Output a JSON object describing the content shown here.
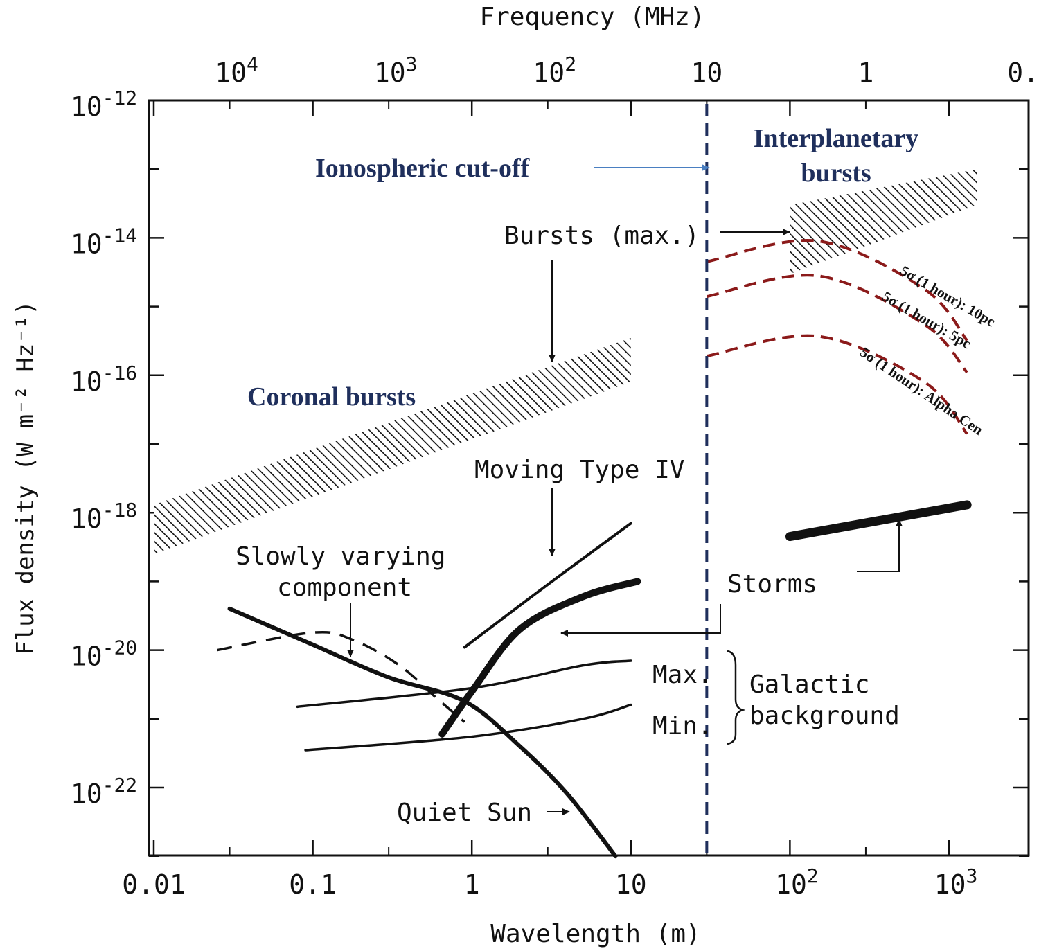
{
  "chart_data": {
    "type": "line",
    "title": "",
    "xlabel": "Wavelength (m)",
    "x2label": "Frequency (MHz)",
    "ylabel": "Flux density (W m⁻² Hz⁻¹)",
    "x_scale": "log",
    "y_scale": "log",
    "xlim": [
      0.01,
      3000
    ],
    "ylim": [
      1e-23,
      1e-12
    ],
    "grid": false,
    "x_ticks": [
      {
        "base": "0.01",
        "exp": ""
      },
      {
        "base": "0.1",
        "exp": ""
      },
      {
        "base": "1",
        "exp": ""
      },
      {
        "base": "10",
        "exp": ""
      },
      {
        "base": "10",
        "exp": "2"
      },
      {
        "base": "10",
        "exp": "3"
      }
    ],
    "x2_ticks": [
      {
        "base": "10",
        "exp": "4"
      },
      {
        "base": "10",
        "exp": "3"
      },
      {
        "base": "10",
        "exp": "2"
      },
      {
        "base": "10",
        "exp": ""
      },
      {
        "base": "1",
        "exp": ""
      },
      {
        "base": "0.",
        "exp": ""
      }
    ],
    "y_ticks": [
      {
        "base": "10",
        "exp": "-12"
      },
      {
        "base": "10",
        "exp": "-14"
      },
      {
        "base": "10",
        "exp": "-16"
      },
      {
        "base": "10",
        "exp": "-18"
      },
      {
        "base": "10",
        "exp": "-20"
      },
      {
        "base": "10",
        "exp": "-22"
      }
    ],
    "series": [
      {
        "name": "Quiet Sun",
        "points": [
          [
            0.03,
            4e-20
          ],
          [
            0.1,
            1.2e-20
          ],
          [
            0.3,
            4e-21
          ],
          [
            0.9,
            1.8e-21
          ],
          [
            2,
            4e-22
          ],
          [
            4,
            8e-23
          ],
          [
            8,
            1e-23
          ]
        ]
      },
      {
        "name": "Slowly varying component",
        "points": [
          [
            0.025,
            1e-20
          ],
          [
            0.1,
            1.8e-20
          ],
          [
            0.18,
            1.4e-20
          ],
          [
            0.35,
            6e-21
          ],
          [
            0.6,
            2e-21
          ],
          [
            0.9,
            9e-22
          ]
        ]
      },
      {
        "name": "Moving Type IV",
        "points": [
          [
            0.9,
            1.1e-20
          ],
          [
            3,
            9e-20
          ],
          [
            10,
            7e-19
          ]
        ]
      },
      {
        "name": "Storms (coronal)",
        "points": [
          [
            0.65,
            6e-22
          ],
          [
            1,
            2.5e-21
          ],
          [
            2,
            2e-20
          ],
          [
            5,
            6e-20
          ],
          [
            11,
            1e-19
          ]
        ]
      },
      {
        "name": "Galactic background Max.",
        "points": [
          [
            0.08,
            1.5e-21
          ],
          [
            1,
            2.8e-21
          ],
          [
            5,
            6e-21
          ],
          [
            10,
            7e-21
          ]
        ]
      },
      {
        "name": "Galactic background Min.",
        "points": [
          [
            0.09,
            3.5e-22
          ],
          [
            1,
            5.5e-22
          ],
          [
            5,
            1e-21
          ],
          [
            10,
            1.6e-21
          ]
        ]
      },
      {
        "name": "Storms (interplanetary)",
        "points": [
          [
            100,
            4.5e-19
          ],
          [
            1300,
            1.3e-18
          ]
        ]
      },
      {
        "name": "5σ (1 hour): 10pc",
        "points": [
          [
            30,
            4.5e-15
          ],
          [
            150,
            9e-15
          ],
          [
            700,
            1.8e-15
          ],
          [
            1300,
            3.2e-16
          ]
        ]
      },
      {
        "name": "5σ (1 hour): 5pc",
        "points": [
          [
            30,
            1.4e-15
          ],
          [
            150,
            2.8e-15
          ],
          [
            700,
            5.5e-16
          ],
          [
            1300,
            1.1e-16
          ]
        ]
      },
      {
        "name": "5σ (1 hour): Alpha Cen",
        "points": [
          [
            30,
            1.9e-16
          ],
          [
            150,
            3.7e-16
          ],
          [
            700,
            8e-17
          ],
          [
            1300,
            1.4e-17
          ]
        ]
      }
    ],
    "bands": [
      {
        "name": "Coronal bursts",
        "x": [
          0.01,
          10
        ],
        "y_lower": [
          2.5e-19,
          8e-17
        ],
        "y_upper": [
          1.3e-18,
          3.5e-16
        ]
      },
      {
        "name": "Interplanetary bursts",
        "x": [
          100,
          1500
        ],
        "y_lower": [
          3e-15,
          3e-14
        ],
        "y_upper": [
          3e-14,
          1e-13
        ]
      }
    ],
    "reference_lines": [
      {
        "label": "Ionospheric cut-off",
        "x": 30
      }
    ],
    "annotations": {
      "ionospheric_cutoff": "Ionospheric cut-off",
      "interplanetary_line1": "Interplanetary",
      "interplanetary_line2": "bursts",
      "bursts_max": "Bursts (max.)",
      "coronal_bursts": "Coronal bursts",
      "moving_type_iv": "Moving Type IV",
      "slowly_varying_line1": "Slowly varying",
      "slowly_varying_line2": "component",
      "storms": "Storms",
      "max": "Max.",
      "min": "Min.",
      "galactic_line1": "Galactic",
      "galactic_line2": "background",
      "quiet_sun": "Quiet Sun",
      "label_10pc": "5σ (1 hour): 10pc",
      "label_5pc": "5σ (1 hour): 5pc",
      "label_alpha_cen": "5σ (1 hour): Alpha Cen"
    }
  },
  "colors": {
    "ink": "#111111",
    "navy": "#1f2f5c",
    "dashed_red": "#8b1a1a",
    "arrow_blue": "#4a7fc1"
  }
}
